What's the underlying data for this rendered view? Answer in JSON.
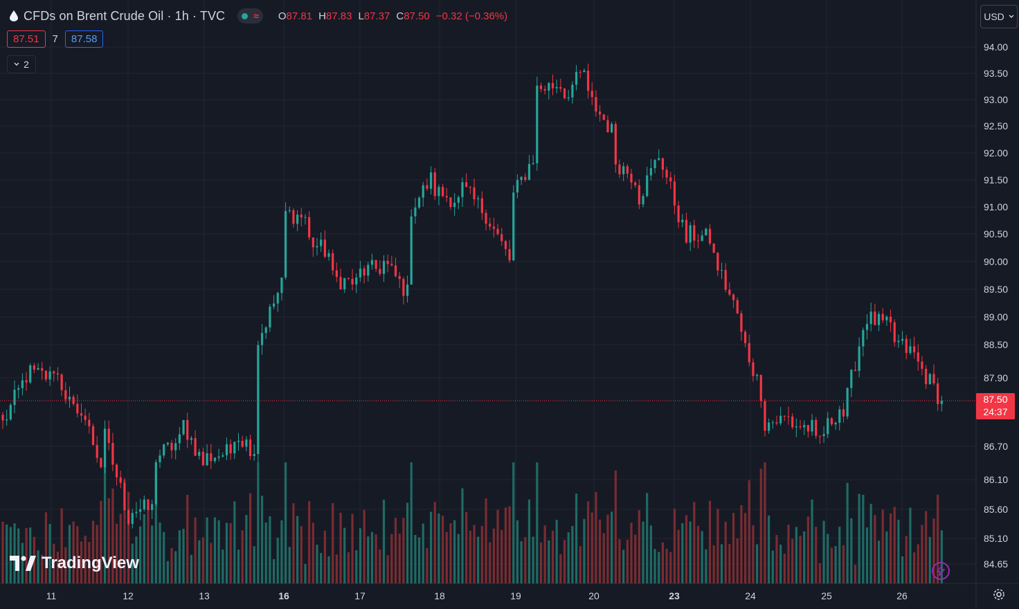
{
  "header": {
    "title": "CFDs on Brent Crude Oil · 1h · TVC",
    "ohlc": {
      "o_label": "O",
      "o": "87.81",
      "h_label": "H",
      "h": "87.83",
      "l_label": "L",
      "l": "87.37",
      "c_label": "C",
      "c": "87.50",
      "change": "−0.32 (−0.36%)"
    },
    "sell_price": "87.51",
    "spread": "7",
    "buy_price": "87.58",
    "indicators_count": "2",
    "currency": "USD"
  },
  "price_tag": {
    "price": "87.50",
    "countdown": "24:37"
  },
  "logo_text": "TradingView",
  "colors": {
    "background": "#161a25",
    "up": "#26a69a",
    "down": "#f23645",
    "grid": "#232632",
    "text": "#d1d4dc"
  },
  "icons": [
    "drop-icon",
    "status-dot-icon",
    "wave-icon",
    "chevron-down-icon",
    "gear-icon",
    "lightning-icon",
    "tradingview-logo-icon"
  ],
  "chart_data": {
    "type": "candlestick",
    "title": "CFDs on Brent Crude Oil · 1h · TVC",
    "y_axis": {
      "labels": [
        "94.00",
        "93.50",
        "93.00",
        "92.50",
        "92.00",
        "91.50",
        "91.00",
        "90.50",
        "90.00",
        "89.50",
        "89.00",
        "88.50",
        "87.90",
        "86.70",
        "86.10",
        "85.60",
        "85.10",
        "84.65"
      ],
      "current_price": 87.5
    },
    "x_axis": {
      "labels": [
        "11",
        "12",
        "13",
        "16",
        "17",
        "18",
        "19",
        "20",
        "23",
        "24",
        "25",
        "26"
      ],
      "bold_labels": [
        "16",
        "23"
      ]
    },
    "price_path": [
      [
        88.3,
        87.1
      ],
      [
        88.0,
        88.0
      ],
      [
        87.9,
        88.1
      ],
      [
        87.1,
        87.5
      ],
      [
        86.2,
        86.9
      ],
      [
        85.4,
        85.6
      ],
      [
        85.6,
        86.5
      ],
      [
        86.8,
        87.2
      ],
      [
        86.3,
        86.5
      ],
      [
        86.6,
        87.0
      ],
      [
        86.6,
        88.5
      ],
      [
        89.6,
        90.9
      ],
      [
        90.8,
        90.4
      ],
      [
        90.1,
        89.7
      ],
      [
        89.6,
        89.8
      ],
      [
        89.9,
        90.0
      ],
      [
        89.4,
        90.9
      ],
      [
        91.6,
        91.3
      ],
      [
        91.1,
        91.4
      ],
      [
        90.9,
        90.9
      ],
      [
        90.0,
        91.1
      ],
      [
        92.0,
        93.2
      ],
      [
        93.3,
        93.0
      ],
      [
        93.6,
        93.1
      ],
      [
        92.4,
        91.9
      ],
      [
        91.5,
        91.1
      ],
      [
        92.1,
        91.8
      ],
      [
        90.3,
        90.5
      ],
      [
        90.4,
        90.1
      ],
      [
        89.0,
        88.8
      ],
      [
        87.5,
        87.1
      ],
      [
        87.2,
        87.1
      ],
      [
        87.0,
        86.7
      ],
      [
        87.4,
        87.0
      ],
      [
        89.0,
        89.0
      ],
      [
        88.8,
        88.6
      ],
      [
        88.3,
        88.2
      ],
      [
        87.5,
        87.5
      ]
    ],
    "volume": "histogram bars along the bottom of the chart, colored by candle direction"
  }
}
